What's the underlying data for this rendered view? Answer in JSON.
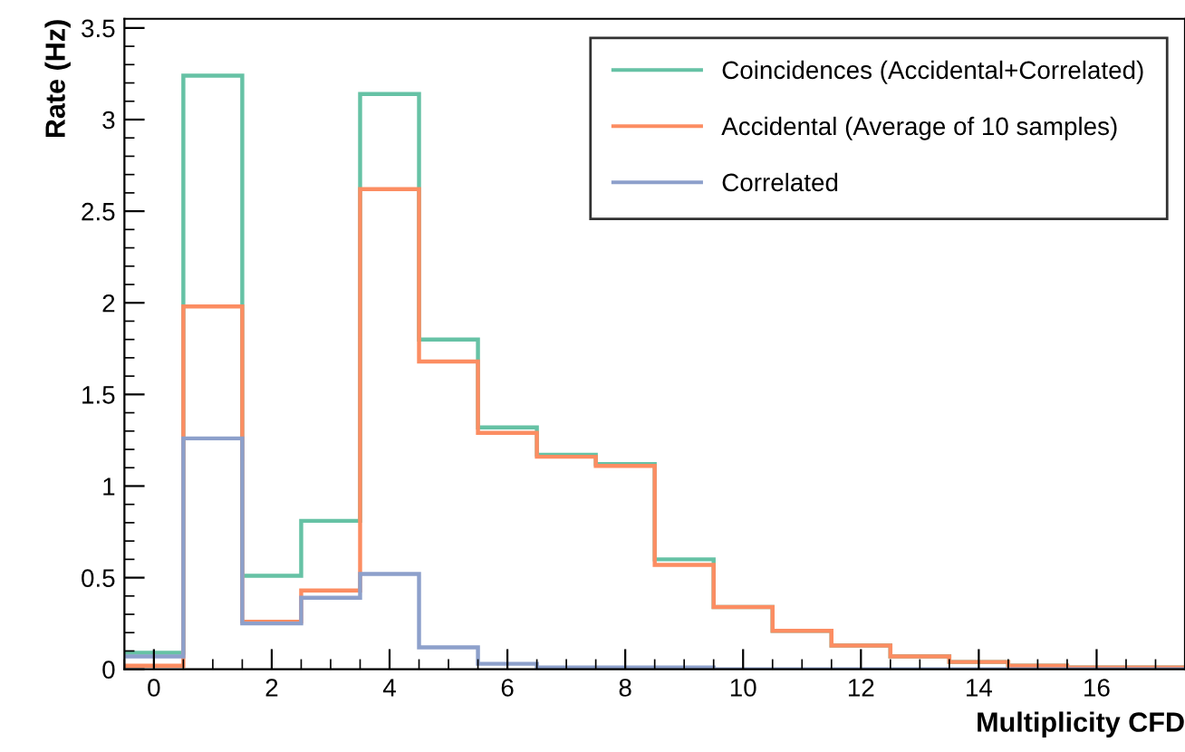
{
  "chart_data": {
    "type": "histogram",
    "xlabel": "Multiplicity CFD",
    "ylabel": "Rate (Hz)",
    "bins": [
      -0.5,
      0.5,
      1.5,
      2.5,
      3.5,
      4.5,
      5.5,
      6.5,
      7.5,
      8.5,
      9.5,
      10.5,
      11.5,
      12.5,
      13.5,
      14.5,
      15.5,
      16.5,
      17.5
    ],
    "series": [
      {
        "name": "Coincidences (Accidental+Correlated)",
        "color": "#66c2a5",
        "values": [
          0.09,
          3.24,
          0.51,
          0.81,
          3.14,
          1.8,
          1.32,
          1.17,
          1.12,
          0.6,
          0.34,
          0.21,
          0.13,
          0.07,
          0.04,
          0.02,
          0.01,
          0.01
        ]
      },
      {
        "name": "Accidental (Average of 10 samples)",
        "color": "#fc8d62",
        "values": [
          0.02,
          1.98,
          0.26,
          0.43,
          2.62,
          1.68,
          1.29,
          1.16,
          1.11,
          0.57,
          0.34,
          0.21,
          0.13,
          0.07,
          0.04,
          0.02,
          0.01,
          0.01
        ]
      },
      {
        "name": "Correlated",
        "color": "#8da0cb",
        "values": [
          0.07,
          1.26,
          0.25,
          0.39,
          0.52,
          0.12,
          0.03,
          0.01,
          0.01,
          0.01,
          0,
          0,
          0,
          0,
          0,
          0,
          0,
          0
        ]
      }
    ],
    "xlim": [
      -0.5,
      17.5
    ],
    "ylim": [
      0,
      3.55
    ],
    "xticks": [
      0,
      2,
      4,
      6,
      8,
      10,
      12,
      14,
      16
    ],
    "yticks": [
      0,
      0.5,
      1,
      1.5,
      2,
      2.5,
      3,
      3.5
    ],
    "legend": "top right",
    "grid": false
  }
}
